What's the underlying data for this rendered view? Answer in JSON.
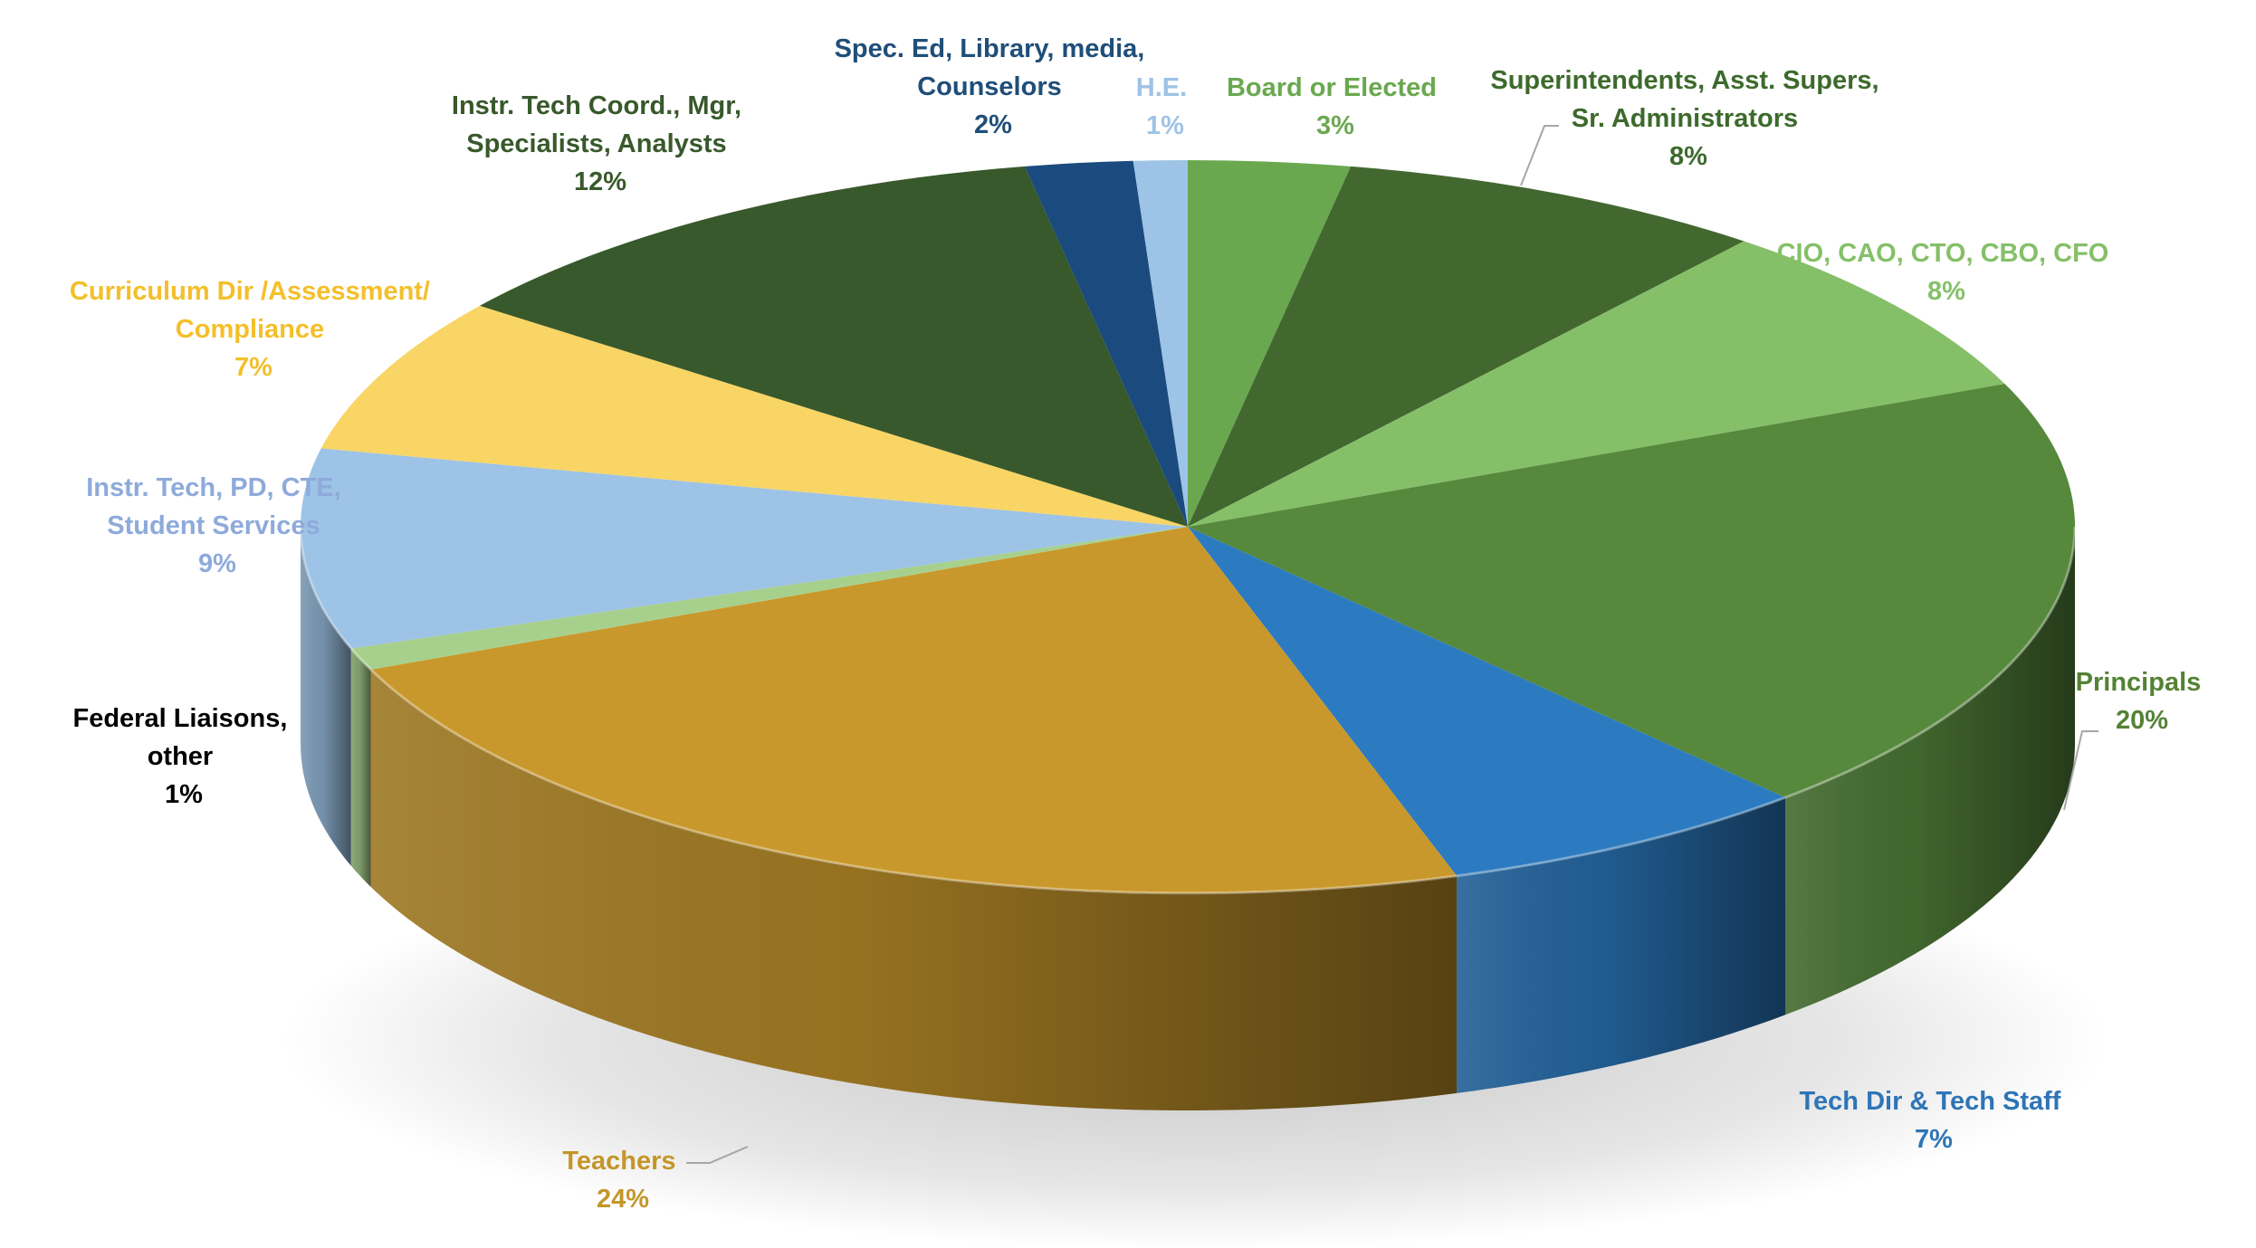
{
  "chart_data": {
    "type": "pie",
    "title": "",
    "three_d": true,
    "slices": [
      {
        "label": "Board or Elected",
        "value": 3,
        "pct_text": "3%",
        "color": "#6aa84f",
        "label_color": "#6aa84f"
      },
      {
        "label": "Superintendents, Asst. Supers, Sr. Administrators",
        "value": 8,
        "pct_text": "8%",
        "color": "#426830",
        "label_color": "#3d6a2c"
      },
      {
        "label": "CIO, CAO, CTO, CBO, CFO",
        "value": 8,
        "pct_text": "8%",
        "color": "#85c069",
        "label_color": "#85c069"
      },
      {
        "label": "Principals",
        "value": 20,
        "pct_text": "20%",
        "color": "#57893d",
        "label_color": "#548235"
      },
      {
        "label": "Tech Dir & Tech Staff",
        "value": 7,
        "pct_text": "7%",
        "color": "#2c7bc1",
        "label_color": "#2e75b6"
      },
      {
        "label": "Teachers",
        "value": 24,
        "pct_text": "24%",
        "color": "#c9982c",
        "label_color": "#c4962a"
      },
      {
        "label": "Federal Liaisons, other",
        "value": 1,
        "pct_text": "1%",
        "color": "#a8d08d",
        "label_color": "#000000"
      },
      {
        "label": "Instr. Tech, PD, CTE, Student Services",
        "value": 9,
        "pct_text": "9%",
        "color": "#9dc3e6",
        "label_color": "#8eaadb"
      },
      {
        "label": "Curriculum Dir /Assessment/ Compliance",
        "value": 7,
        "pct_text": "7%",
        "color": "#f9d566",
        "label_color": "#f4bf2a"
      },
      {
        "label": "Instr. Tech Coord., Mgr, Specialists, Analysts",
        "value": 12,
        "pct_text": "12%",
        "color": "#38592b",
        "label_color": "#38592b"
      },
      {
        "label": "Spec. Ed, Library, media, Counselors",
        "value": 2,
        "pct_text": "2%",
        "color": "#1b4a7e",
        "label_color": "#1f4e79"
      },
      {
        "label": "H.E.",
        "value": 1,
        "pct_text": "1%",
        "color": "#9dc3e6",
        "label_color": "#9dc3e6"
      }
    ]
  },
  "labels": [
    {
      "lines": [
        "Board or Elected",
        "3%"
      ]
    },
    {
      "lines": [
        "Superintendents, Asst. Supers,",
        "Sr. Administrators",
        "8%"
      ]
    },
    {
      "lines": [
        "CIO, CAO, CTO, CBO, CFO",
        "8%"
      ]
    },
    {
      "lines": [
        "Principals",
        "20%"
      ]
    },
    {
      "lines": [
        "Tech Dir & Tech Staff",
        "7%"
      ]
    },
    {
      "lines": [
        "Teachers",
        "24%"
      ]
    },
    {
      "lines": [
        "Federal Liaisons,",
        "other",
        "1%"
      ]
    },
    {
      "lines": [
        "Instr. Tech, PD, CTE,",
        "Student Services",
        "9%"
      ]
    },
    {
      "lines": [
        "Curriculum Dir /Assessment/",
        "Compliance",
        "7%"
      ]
    },
    {
      "lines": [
        "Instr. Tech Coord., Mgr,",
        "Specialists, Analysts",
        "12%"
      ]
    },
    {
      "lines": [
        "Spec. Ed, Library, media,",
        "Counselors",
        "2%"
      ]
    },
    {
      "lines": [
        "H.E.",
        "1%"
      ]
    }
  ]
}
